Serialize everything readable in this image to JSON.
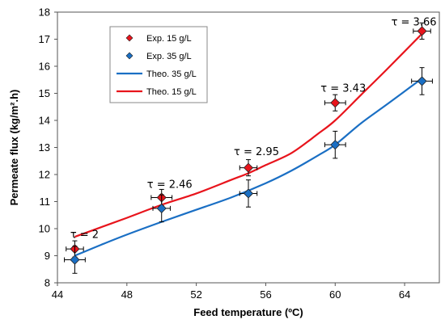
{
  "chart_data": {
    "type": "line",
    "xlabel": "Feed temperature (ºC)",
    "ylabel": "Permeate flux (kg/m².h)",
    "xlim": [
      44,
      66
    ],
    "ylim": [
      8,
      18
    ],
    "xticks": [
      44,
      48,
      52,
      56,
      60,
      64
    ],
    "yticks": [
      8,
      9,
      10,
      11,
      12,
      13,
      14,
      15,
      16,
      17,
      18
    ],
    "grid": false,
    "legend_position": "top-left",
    "legend": [
      "Exp. 15 g/L",
      "Exp. 35 g/L",
      "Theo. 35 g/L",
      "Theo. 15 g/L"
    ],
    "series": [
      {
        "name": "Exp. 15 g/L",
        "kind": "scatter",
        "marker": "diamond",
        "color": "#e8141c",
        "x": [
          45,
          50,
          55,
          60,
          65
        ],
        "y": [
          9.25,
          11.15,
          12.25,
          14.65,
          17.3
        ],
        "xerr": [
          0.5,
          0.6,
          0.5,
          0.6,
          0.5
        ],
        "yerr": [
          0.3,
          0.3,
          0.3,
          0.3,
          0.3
        ]
      },
      {
        "name": "Exp. 35 g/L",
        "kind": "scatter",
        "marker": "diamond",
        "color": "#1a6fc4",
        "x": [
          45,
          50,
          55,
          60,
          65
        ],
        "y": [
          8.85,
          10.75,
          11.3,
          13.1,
          15.45
        ],
        "xerr": [
          0.6,
          0.5,
          0.5,
          0.6,
          0.6
        ],
        "yerr": [
          0.5,
          0.5,
          0.5,
          0.5,
          0.5
        ]
      },
      {
        "name": "Theo. 35 g/L",
        "kind": "line",
        "color": "#1a6fc4",
        "x": [
          45,
          46.5,
          48,
          50,
          52,
          54,
          56,
          57.5,
          59,
          60,
          61.5,
          63,
          65
        ],
        "y": [
          9.0,
          9.4,
          9.78,
          10.25,
          10.7,
          11.15,
          11.68,
          12.15,
          12.7,
          13.1,
          13.9,
          14.6,
          15.55
        ]
      },
      {
        "name": "Theo. 15 g/L",
        "kind": "line",
        "color": "#e8141c",
        "x": [
          45,
          46.5,
          48,
          50,
          52,
          54,
          55,
          56,
          57.5,
          59,
          60,
          61.5,
          63,
          65
        ],
        "y": [
          9.7,
          10.05,
          10.4,
          10.88,
          11.3,
          11.8,
          12.05,
          12.35,
          12.8,
          13.5,
          14.0,
          14.95,
          15.9,
          17.2
        ]
      }
    ],
    "annotations": [
      {
        "text": "τ = 2",
        "x": 45,
        "y": 9.6
      },
      {
        "text": "τ = 2.46",
        "x": 50,
        "y": 11.45
      },
      {
        "text": "τ = 2.95",
        "x": 55,
        "y": 12.65
      },
      {
        "text": "τ = 3.43",
        "x": 60,
        "y": 15.0
      },
      {
        "text": "τ = 3.66",
        "x": 65,
        "y": 17.45
      }
    ]
  }
}
